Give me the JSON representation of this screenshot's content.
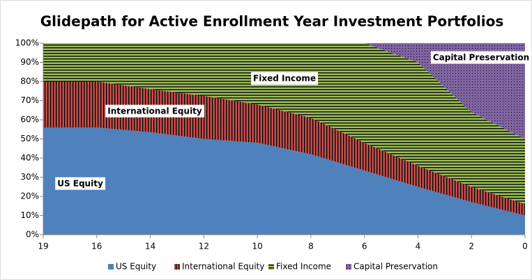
{
  "chart_data": {
    "type": "stacked_area",
    "title": "Glidepath for Active Enrollment Year Investment Portfolios",
    "categories": [
      "19",
      "16",
      "14",
      "12",
      "10",
      "8",
      "6",
      "4",
      "2",
      "0"
    ],
    "series": [
      {
        "name": "US Equity",
        "color": "#4f81bd",
        "values": [
          56,
          56,
          53.5,
          50,
          48,
          42,
          33.5,
          25,
          17,
          10
        ]
      },
      {
        "name": "International Equity",
        "color": "#c0504d",
        "values": [
          24,
          24,
          22.5,
          22.5,
          20,
          19,
          14.5,
          11,
          8,
          6
        ]
      },
      {
        "name": "Fixed Income",
        "color": "#9bbb59",
        "values": [
          20,
          20,
          24,
          27.5,
          32,
          39,
          52,
          54,
          39,
          34
        ]
      },
      {
        "name": "Capital Preservation",
        "color": "#8064a2",
        "values": [
          0,
          0,
          0,
          0,
          0,
          0,
          0,
          10,
          36,
          50
        ]
      }
    ],
    "ylim": [
      0,
      100
    ],
    "yticks": [
      {
        "value": 0,
        "label": "0%"
      },
      {
        "value": 10,
        "label": "10%"
      },
      {
        "value": 20,
        "label": "20%"
      },
      {
        "value": 30,
        "label": "30%"
      },
      {
        "value": 40,
        "label": "40%"
      },
      {
        "value": 50,
        "label": "50%"
      },
      {
        "value": 60,
        "label": "60%"
      },
      {
        "value": 70,
        "label": "70%"
      },
      {
        "value": 80,
        "label": "80%"
      },
      {
        "value": 90,
        "label": "90%"
      },
      {
        "value": 100,
        "label": "100%"
      }
    ],
    "legend": "bottom"
  }
}
